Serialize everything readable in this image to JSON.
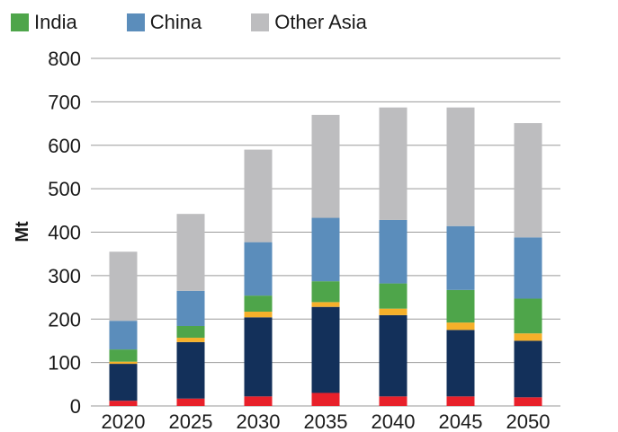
{
  "legend": {
    "items": [
      {
        "label": "India",
        "color": "#4ea54a"
      },
      {
        "label": "China",
        "color": "#5b8dbb"
      },
      {
        "label": "Other Asia",
        "color": "#bdbdbf"
      }
    ]
  },
  "chart_data": {
    "type": "bar",
    "stacked": true,
    "title": "",
    "xlabel": "",
    "ylabel": "Mt",
    "ylim": [
      0,
      800
    ],
    "yticks": [
      "0",
      "100",
      "200",
      "300",
      "400",
      "500",
      "600",
      "700",
      "800"
    ],
    "grid": true,
    "legend_position": "top-left",
    "categories": [
      "2020",
      "2025",
      "2030",
      "2035",
      "2040",
      "2045",
      "2050"
    ],
    "series": [
      {
        "color": "#e8202a",
        "values": [
          12,
          17,
          22,
          30,
          22,
          22,
          20
        ]
      },
      {
        "color": "#13305a",
        "values": [
          85,
          130,
          182,
          198,
          187,
          153,
          130
        ]
      },
      {
        "color": "#f6b02a",
        "values": [
          5,
          10,
          13,
          11,
          15,
          17,
          17
        ]
      },
      {
        "name": "India",
        "color": "#4ea54a",
        "values": [
          28,
          27,
          37,
          48,
          58,
          75,
          80
        ]
      },
      {
        "name": "China",
        "color": "#5b8dbb",
        "values": [
          66,
          81,
          123,
          146,
          146,
          147,
          141
        ]
      },
      {
        "name": "Other Asia",
        "color": "#bdbdbf",
        "values": [
          159,
          177,
          213,
          237,
          259,
          273,
          263
        ]
      }
    ]
  }
}
